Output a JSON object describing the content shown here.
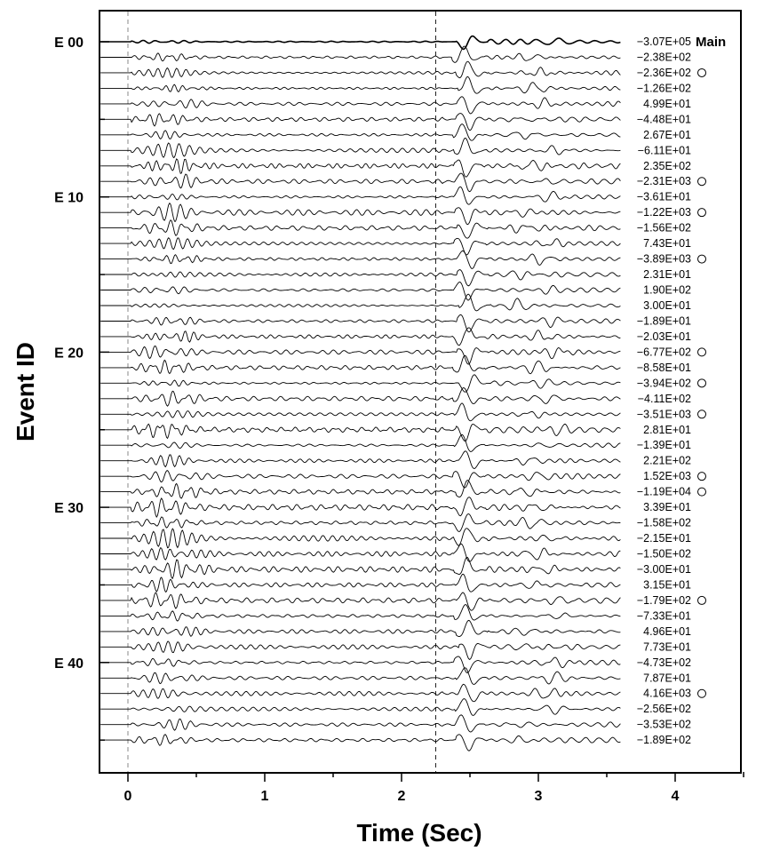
{
  "chart_data": {
    "type": "line",
    "subtype": "seismogram-record-section",
    "xlabel": "Time (Sec)",
    "ylabel": "Event ID",
    "xlim": [
      -0.2,
      4.5
    ],
    "x_ticks": [
      0,
      1,
      2,
      3,
      4
    ],
    "x_tick_labels": [
      "0",
      "1",
      "2",
      "3",
      "4"
    ],
    "y_tick_labels": [
      "E 00",
      "E 10",
      "E 20",
      "E 30",
      "E 40"
    ],
    "y_tick_events": [
      0,
      10,
      20,
      30,
      40
    ],
    "reference_lines_time": [
      0,
      2.25
    ],
    "trace_time_range": [
      -0.2,
      3.6
    ],
    "main_label": "Main",
    "amplitude_labels": [
      "−3.07E+05",
      "−2.38E+02",
      "−2.36E+02",
      "−1.26E+02",
      "4.99E+01",
      "−4.48E+01",
      "2.67E+01",
      "−6.11E+01",
      "2.35E+02",
      "−2.31E+03",
      "−3.61E+01",
      "−1.22E+03",
      "−1.56E+02",
      "7.43E+01",
      "−3.89E+03",
      "2.31E+01",
      "1.90E+02",
      "3.00E+01",
      "−1.89E+01",
      "−2.03E+01",
      "−6.77E+02",
      "−8.58E+01",
      "−3.94E+02",
      "−4.11E+02",
      "−3.51E+03",
      "2.81E+01",
      "−1.39E+01",
      "2.21E+02",
      "1.52E+03",
      "−1.19E+04",
      "3.39E+01",
      "−1.58E+02",
      "−2.15E+01",
      "−1.50E+02",
      "−3.00E+01",
      "3.15E+01",
      "−1.79E+02",
      "−7.33E+01",
      "4.96E+01",
      "7.73E+01",
      "−4.73E+02",
      "7.87E+01",
      "4.16E+03",
      "−2.56E+02",
      "−3.53E+02",
      "−1.89E+02"
    ],
    "circle_markers": [
      2,
      9,
      11,
      14,
      20,
      22,
      24,
      28,
      29,
      36,
      42
    ],
    "grid": false,
    "colors": {
      "trace": "#000000",
      "background": "#ffffff",
      "frame": "#000000"
    }
  }
}
